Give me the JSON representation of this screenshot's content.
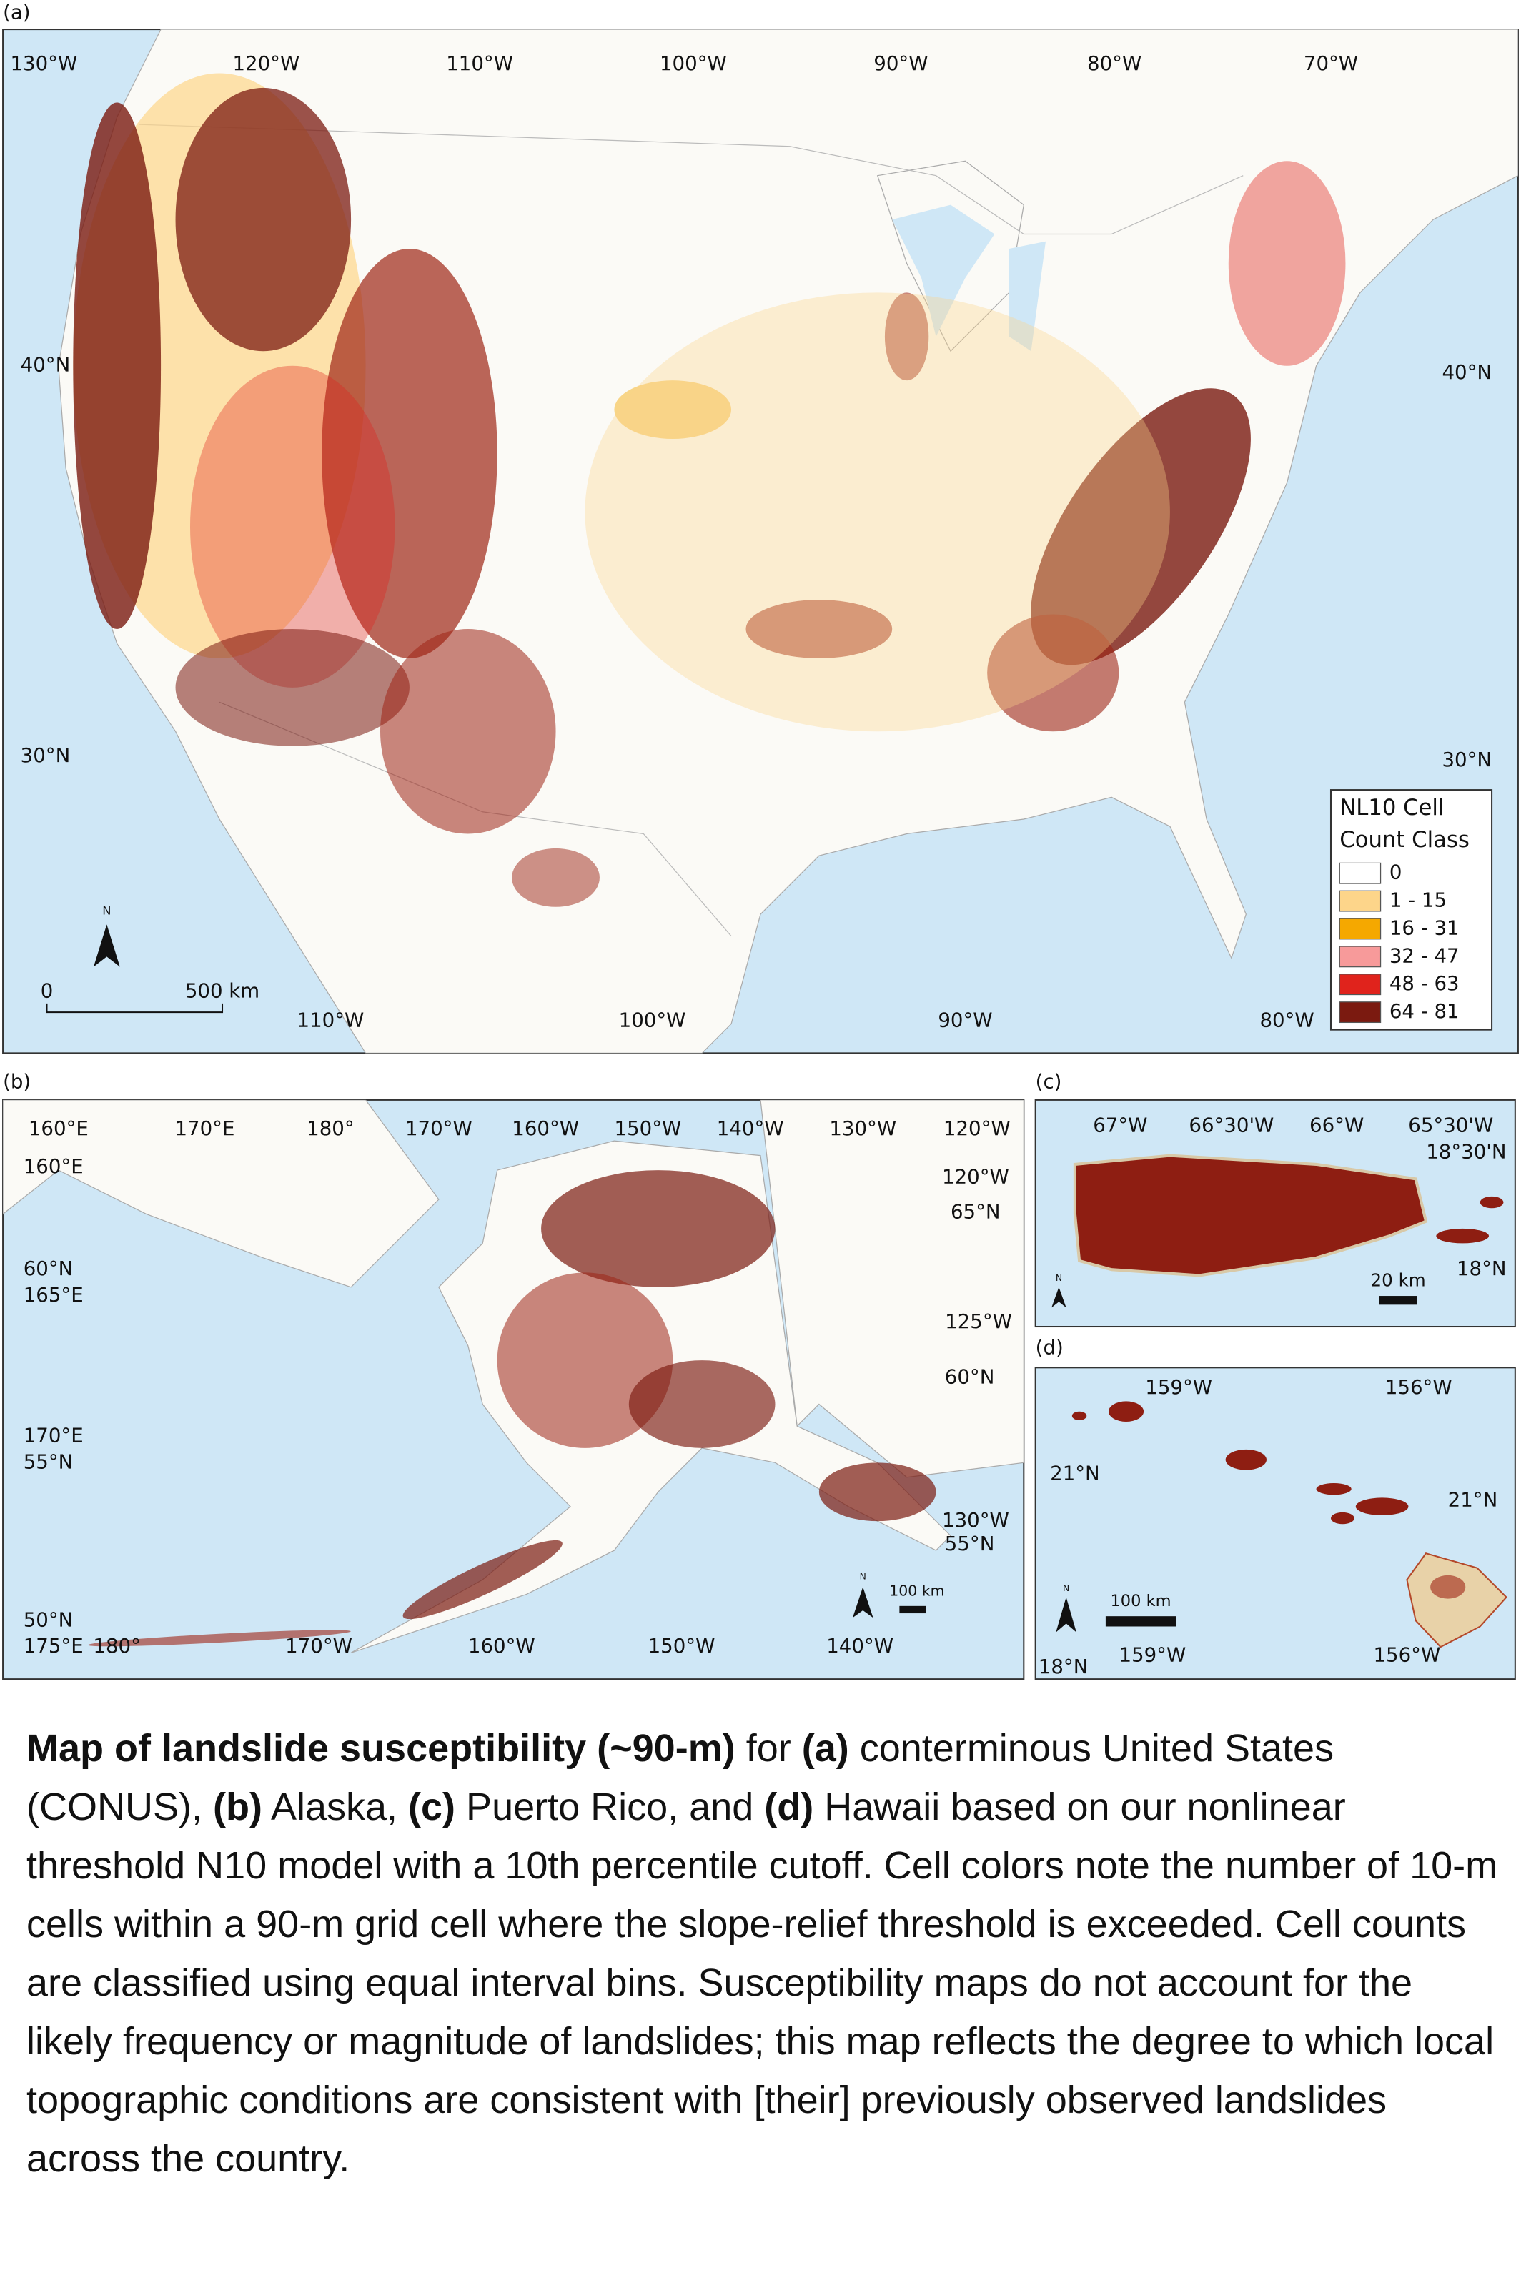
{
  "panels": {
    "a": {
      "label": "(a)",
      "top_labels": [
        "130°W",
        "120°W",
        "110°W",
        "100°W",
        "90°W",
        "80°W",
        "70°W"
      ],
      "left_labels": [
        "40°N",
        "30°N"
      ],
      "right_labels": [
        "40°N",
        "30°N"
      ],
      "bottom_labels": [
        "110°W",
        "100°W",
        "90°W",
        "80°W"
      ],
      "north": "N",
      "scale_bar": [
        "0",
        "500 km"
      ],
      "legend": {
        "title": [
          "NL10 Cell",
          "Count Class"
        ],
        "classes": [
          {
            "label": "0",
            "color": "#ffffff"
          },
          {
            "label": "1 - 15",
            "color": "#fdd58a"
          },
          {
            "label": "16 - 31",
            "color": "#f5a800"
          },
          {
            "label": "32 - 47",
            "color": "#f79a9a"
          },
          {
            "label": "48 - 63",
            "color": "#e0231c"
          },
          {
            "label": "64 - 81",
            "color": "#7b1a10"
          }
        ]
      }
    },
    "b": {
      "label": "(b)",
      "top_labels": [
        "160°E",
        "170°E",
        "180°",
        "170°W",
        "160°W",
        "150°W",
        "140°W",
        "130°W",
        "120°W"
      ],
      "left_labels": [
        "160°E",
        "60°N",
        "165°E",
        "170°E",
        "55°N",
        "50°N",
        "175°E"
      ],
      "bottom_labels": [
        "180°",
        "170°W",
        "160°W",
        "150°W",
        "140°W"
      ],
      "right_labels": [
        "120°W",
        "65°N",
        "125°W",
        "60°N",
        "130°W",
        "55°N"
      ],
      "north": "N",
      "scale_bar": "100 km"
    },
    "c": {
      "label": "(c)",
      "top_labels": [
        "67°W",
        "66°30'W",
        "66°W",
        "65°30'W"
      ],
      "right_labels": [
        "18°30'N",
        "18°N"
      ],
      "north": "N",
      "scale_bar": "20 km"
    },
    "d": {
      "label": "(d)",
      "top_labels": [
        "159°W",
        "156°W"
      ],
      "left_labels": [
        "21°N",
        "18°N"
      ],
      "right_labels": [
        "21°N"
      ],
      "bottom_labels": [
        "159°W",
        "156°W"
      ],
      "north": "N",
      "scale_bar": "100 km"
    }
  },
  "caption": [
    {
      "text": "Map of landslide susceptibility (~90-m)",
      "bold": true
    },
    {
      "text": " for ",
      "bold": false
    },
    {
      "text": "(a)",
      "bold": true
    },
    {
      "text": " conterminous United States (CONUS), ",
      "bold": false
    },
    {
      "text": "(b)",
      "bold": true
    },
    {
      "text": " Alaska, ",
      "bold": false
    },
    {
      "text": "(c)",
      "bold": true
    },
    {
      "text": " Puerto Rico, and ",
      "bold": false
    },
    {
      "text": "(d)",
      "bold": true
    },
    {
      "text": " Hawaii based on our nonlinear threshold N10 model with a 10th percentile cutoff. Cell colors note the number of 10-m cells within a 90-m grid cell where the slope-relief threshold is exceeded. Cell counts are classified using equal interval bins. Susceptibility maps do not account for the likely frequency or magnitude of landslides; this map reflects the degree to which local topographic conditions are consistent with [their] previously observed landslides across the country.",
      "bold": false
    }
  ]
}
